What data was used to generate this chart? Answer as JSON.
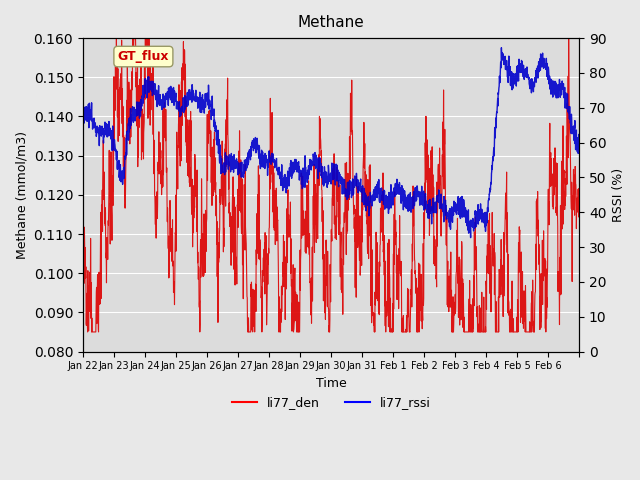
{
  "title": "Methane",
  "xlabel": "Time",
  "ylabel_left": "Methane (mmol/m3)",
  "ylabel_right": "RSSI (%)",
  "ylim_left": [
    0.08,
    0.16
  ],
  "ylim_right": [
    0,
    90
  ],
  "yticks_left": [
    0.08,
    0.09,
    0.1,
    0.11,
    0.12,
    0.13,
    0.14,
    0.15,
    0.16
  ],
  "yticks_right": [
    0,
    10,
    20,
    30,
    40,
    50,
    60,
    70,
    80,
    90
  ],
  "background_color": "#e8e8e8",
  "plot_bg_color": "#dcdcdc",
  "legend_labels": [
    "li77_den",
    "li77_rssi"
  ],
  "legend_colors": [
    "red",
    "blue"
  ],
  "annotation_text": "GT_flux",
  "annotation_color": "#cc0000",
  "annotation_bg": "#ffffcc",
  "annotation_border": "#999966",
  "line_color_red": "#dd0000",
  "line_color_blue": "#0000cc",
  "n_red": 2000,
  "n_blue": 2000,
  "seed": 42
}
